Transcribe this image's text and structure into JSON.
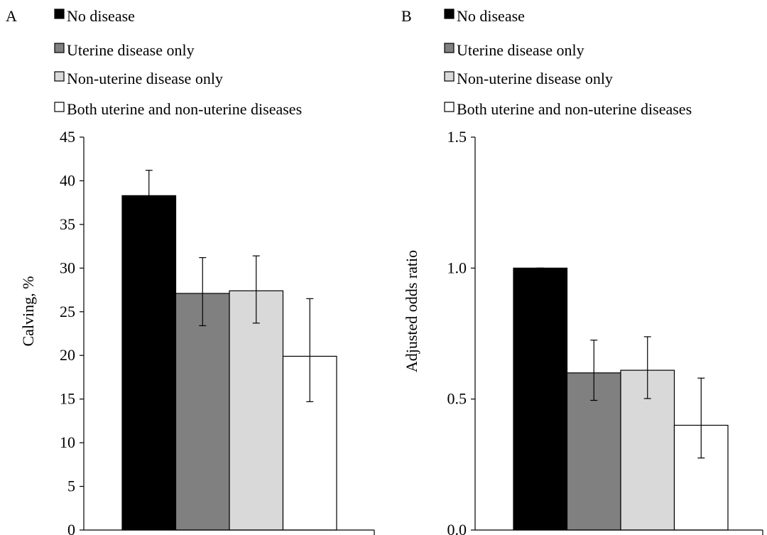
{
  "legend_items": [
    {
      "label": "No disease",
      "color": "#000000"
    },
    {
      "label": "Uterine disease only",
      "color": "#808080"
    },
    {
      "label": "Non-uterine disease only",
      "color": "#d9d9d9"
    },
    {
      "label": "Both uterine and non-uterine diseases",
      "color": "#ffffff"
    }
  ],
  "chart_data": [
    {
      "panel": "A",
      "type": "bar",
      "categories": [
        "No disease",
        "Uterine disease only",
        "Non-uterine disease only",
        "Both uterine and non-uterine diseases"
      ],
      "values": [
        38.3,
        27.1,
        27.4,
        19.9
      ],
      "error_low": [
        35.4,
        23.4,
        23.7,
        14.7
      ],
      "error_high": [
        41.2,
        31.2,
        31.4,
        26.5
      ],
      "colors": [
        "#000000",
        "#808080",
        "#d9d9d9",
        "#ffffff"
      ],
      "ylabel": "Calving, %",
      "ylim": [
        0,
        45
      ],
      "yticks": [
        "0",
        "5",
        "10",
        "15",
        "20",
        "25",
        "30",
        "35",
        "40",
        "45"
      ],
      "grid": false,
      "legend": "top-left"
    },
    {
      "panel": "B",
      "type": "bar",
      "categories": [
        "No disease",
        "Uterine disease only",
        "Non-uterine disease only",
        "Both uterine and non-uterine diseases"
      ],
      "values": [
        1.0,
        0.6,
        0.61,
        0.4
      ],
      "error_low": [
        1.0,
        0.495,
        0.502,
        0.275
      ],
      "error_high": [
        1.0,
        0.725,
        0.738,
        0.58
      ],
      "colors": [
        "#000000",
        "#808080",
        "#d9d9d9",
        "#ffffff"
      ],
      "ylabel": "Adjusted odds ratio",
      "ylim": [
        0,
        1.5
      ],
      "yticks": [
        "0.0",
        "0.5",
        "1.0",
        "1.5"
      ],
      "grid": false,
      "legend": "top-left"
    }
  ]
}
